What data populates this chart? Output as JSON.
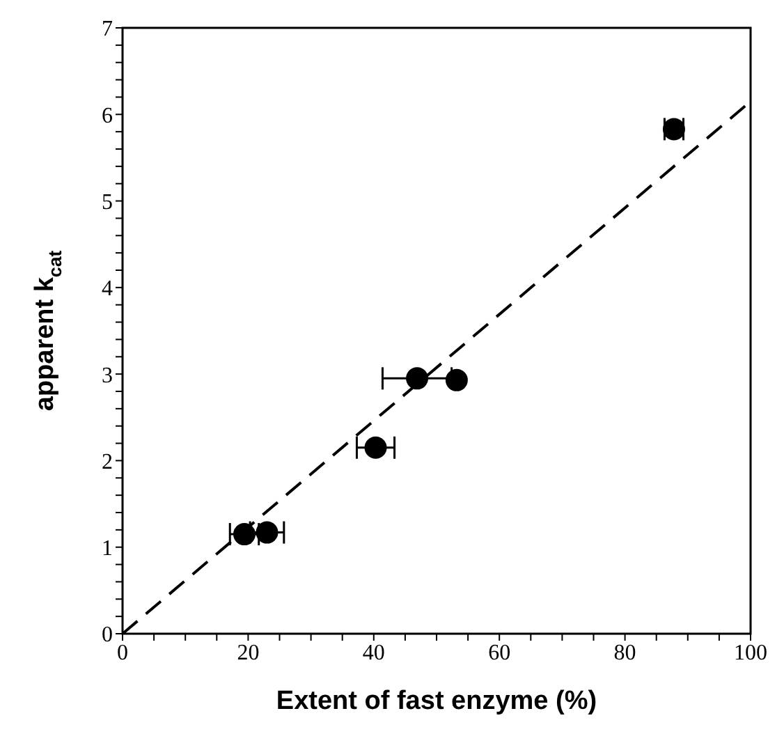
{
  "chart_data": {
    "type": "scatter",
    "xlabel": "Extent of fast enzyme (%)",
    "ylabel": "apparent k$_{cat}$",
    "x": [
      19.4,
      23,
      40.3,
      46.9,
      53.2,
      87.8
    ],
    "series": [
      {
        "color": "#000000",
        "marker": "circle",
        "values": [
          1.15,
          1.17,
          2.15,
          2.95,
          2.93,
          5.83
        ],
        "xerrors": [
          2.3,
          2.7,
          3,
          5.5,
          null,
          1.5
        ]
      },
      {
        "type": "line",
        "color": "#000000",
        "line_style": "dashed",
        "marker": "none",
        "x": [
          0,
          100
        ],
        "values": [
          0,
          6.15
        ]
      }
    ],
    "xlim": [
      0,
      100
    ],
    "ylim": [
      0,
      7
    ],
    "xticks": [
      0,
      {
        "value": 5,
        "label": null
      },
      20,
      {
        "value": 10,
        "label": null
      },
      {
        "value": 15,
        "label": null
      },
      {
        "value": 25,
        "label": null
      },
      {
        "value": 30,
        "label": null
      },
      {
        "value": 35,
        "label": null
      },
      40,
      {
        "value": 45,
        "label": null
      },
      {
        "value": 50,
        "label": null
      },
      {
        "value": 55,
        "label": null
      },
      60,
      {
        "value": 65,
        "label": null
      },
      {
        "value": 70,
        "label": null
      },
      {
        "value": 75,
        "label": null
      },
      80,
      {
        "value": 85,
        "label": null
      },
      {
        "value": 90,
        "label": null
      },
      {
        "value": 95,
        "label": null
      },
      100
    ],
    "yticks": [
      0,
      {
        "value": 0.2,
        "label": null
      },
      {
        "value": 0.4,
        "label": null
      },
      {
        "value": 0.6,
        "label": null
      },
      {
        "value": 0.8,
        "label": null
      },
      1,
      {
        "value": 1.2,
        "label": null
      },
      {
        "value": 1.4,
        "label": null
      },
      {
        "value": 1.6,
        "label": null
      },
      {
        "value": 1.8,
        "label": null
      },
      2,
      {
        "value": 2.2,
        "label": null
      },
      {
        "value": 2.4,
        "label": null
      },
      {
        "value": 2.6,
        "label": null
      },
      {
        "value": 2.8,
        "label": null
      },
      3,
      {
        "value": 3.2,
        "label": null
      },
      {
        "value": 3.4,
        "label": null
      },
      {
        "value": 3.6,
        "label": null
      },
      {
        "value": 3.8,
        "label": null
      },
      4,
      {
        "value": 4.2,
        "label": null
      },
      {
        "value": 4.4,
        "label": null
      },
      {
        "value": 4.6,
        "label": null
      },
      {
        "value": 4.8,
        "label": null
      },
      5,
      {
        "value": 5.2,
        "label": null
      },
      {
        "value": 5.4,
        "label": null
      },
      {
        "value": 5.6,
        "label": null
      },
      {
        "value": 5.8,
        "label": null
      },
      6,
      {
        "value": 6.2,
        "label": null
      },
      {
        "value": 6.4,
        "label": null
      },
      {
        "value": 6.6,
        "label": null
      },
      {
        "value": 6.8,
        "label": null
      },
      7
    ],
    "grid": false,
    "legend": false
  }
}
